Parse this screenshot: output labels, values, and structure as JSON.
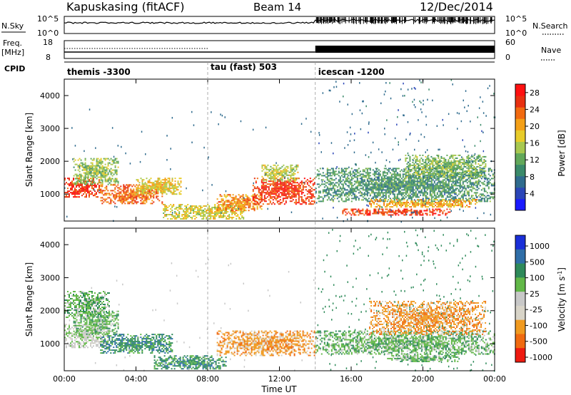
{
  "header": {
    "station": "Kapuskasing (fitACF)",
    "beam": "Beam 14",
    "date": "12/Dec/2014"
  },
  "strip": {
    "nsky_label": "N.Sky",
    "freq_label_1": "Freq.",
    "freq_label_2": "[MHz]",
    "cpid_label": "CPID",
    "nsearch_label": "N.Search",
    "nave_label": "Nave",
    "nsky_ticks": [
      "10^5",
      "10^0"
    ],
    "nsearch_ticks": [
      "10^5",
      "10^0"
    ],
    "freq_ticks": [
      "18",
      "8"
    ],
    "nave_ticks": [
      "60",
      "0"
    ]
  },
  "cpid_segments": [
    {
      "label": "themis -3300",
      "start_hour": 0
    },
    {
      "label": "tau (fast) 503",
      "start_hour": 8
    },
    {
      "label": "icescan -1200",
      "start_hour": 14
    }
  ],
  "xaxis": {
    "title": "Time UT",
    "ticks": [
      "00:00",
      "04:00",
      "08:00",
      "12:00",
      "16:00",
      "20:00",
      "00:00"
    ]
  },
  "chart_data": [
    {
      "type": "heatmap",
      "parameter": "power",
      "xlabel": "Time UT",
      "ylabel": "Slant Range [km]",
      "xlim_hours": [
        0,
        24
      ],
      "ylim_km": [
        180,
        4500
      ],
      "yticks": [
        "1000",
        "2000",
        "3000",
        "4000"
      ],
      "colorbar_label": "Power [dB]",
      "colorbar_ticks": [
        "4",
        "8",
        "12",
        "16",
        "20",
        "24",
        "28"
      ],
      "colorbar_range": [
        0,
        30
      ],
      "echo_regions": [
        {
          "t0": 0.0,
          "t1": 2.0,
          "r0": 900,
          "r1": 1500,
          "level": 27
        },
        {
          "t0": 0.5,
          "t1": 3.0,
          "r0": 1300,
          "r1": 2100,
          "level": 14
        },
        {
          "t0": 2.0,
          "t1": 5.5,
          "r0": 700,
          "r1": 1300,
          "level": 24
        },
        {
          "t0": 4.0,
          "t1": 6.5,
          "r0": 1000,
          "r1": 1500,
          "level": 18
        },
        {
          "t0": 5.5,
          "t1": 10.0,
          "r0": 250,
          "r1": 700,
          "level": 17
        },
        {
          "t0": 8.5,
          "t1": 11.0,
          "r0": 500,
          "r1": 1000,
          "level": 22
        },
        {
          "t0": 10.5,
          "t1": 14.0,
          "r0": 700,
          "r1": 1500,
          "level": 27
        },
        {
          "t0": 11.0,
          "t1": 13.0,
          "r0": 1400,
          "r1": 1900,
          "level": 16
        },
        {
          "t0": 14.0,
          "t1": 24.0,
          "r0": 800,
          "r1": 1800,
          "level": 10
        },
        {
          "t0": 15.5,
          "t1": 21.5,
          "r0": 380,
          "r1": 560,
          "level": 27
        },
        {
          "t0": 17.0,
          "t1": 23.0,
          "r0": 600,
          "r1": 850,
          "level": 20
        },
        {
          "t0": 19.0,
          "t1": 23.5,
          "r0": 1500,
          "r1": 2200,
          "level": 13
        }
      ]
    },
    {
      "type": "heatmap",
      "parameter": "velocity",
      "xlabel": "Time UT",
      "ylabel": "Slant Range [km]",
      "xlim_hours": [
        0,
        24
      ],
      "ylim_km": [
        180,
        4500
      ],
      "yticks": [
        "1000",
        "2000",
        "3000",
        "4000"
      ],
      "colorbar_label": "Velocity [m s^-1]",
      "colorbar_ticks": [
        "1000",
        "500",
        "100",
        "25",
        "-25",
        "-100",
        "-500",
        "-1000"
      ],
      "echo_regions": [
        {
          "t0": 0.0,
          "t1": 2.5,
          "r0": 900,
          "r1": 1600,
          "level": 4
        },
        {
          "t0": 0.5,
          "t1": 3.0,
          "r0": 1300,
          "r1": 2000,
          "level": 3
        },
        {
          "t0": 2.0,
          "t1": 6.0,
          "r0": 700,
          "r1": 1300,
          "level": 2
        },
        {
          "t0": 5.0,
          "t1": 9.0,
          "r0": 250,
          "r1": 650,
          "level": 2
        },
        {
          "t0": 0.0,
          "t1": 2.5,
          "r0": 1800,
          "r1": 2600,
          "level": 3
        },
        {
          "t0": 8.5,
          "t1": 14.0,
          "r0": 650,
          "r1": 1400,
          "level": 6
        },
        {
          "t0": 14.0,
          "t1": 24.0,
          "r0": 700,
          "r1": 1400,
          "level": 3
        },
        {
          "t0": 17.0,
          "t1": 23.5,
          "r0": 1300,
          "r1": 2300,
          "level": 6
        },
        {
          "t0": 18.0,
          "t1": 22.0,
          "r0": 450,
          "r1": 700,
          "level": 3
        }
      ]
    }
  ],
  "colors": {
    "power_scale": [
      "#1a1aff",
      "#2b46b8",
      "#2f6b8e",
      "#3a8a6a",
      "#62a85a",
      "#a8c850",
      "#e8cc2a",
      "#f4a018",
      "#f26a10",
      "#e83010",
      "#ff1010"
    ],
    "velocity_scale": [
      "#1a2fd8",
      "#2f6ea8",
      "#2e8a5a",
      "#62b848",
      "#c8c8c8",
      "#d8d4c8",
      "#f09a20",
      "#f06a10",
      "#ee1a10"
    ]
  }
}
